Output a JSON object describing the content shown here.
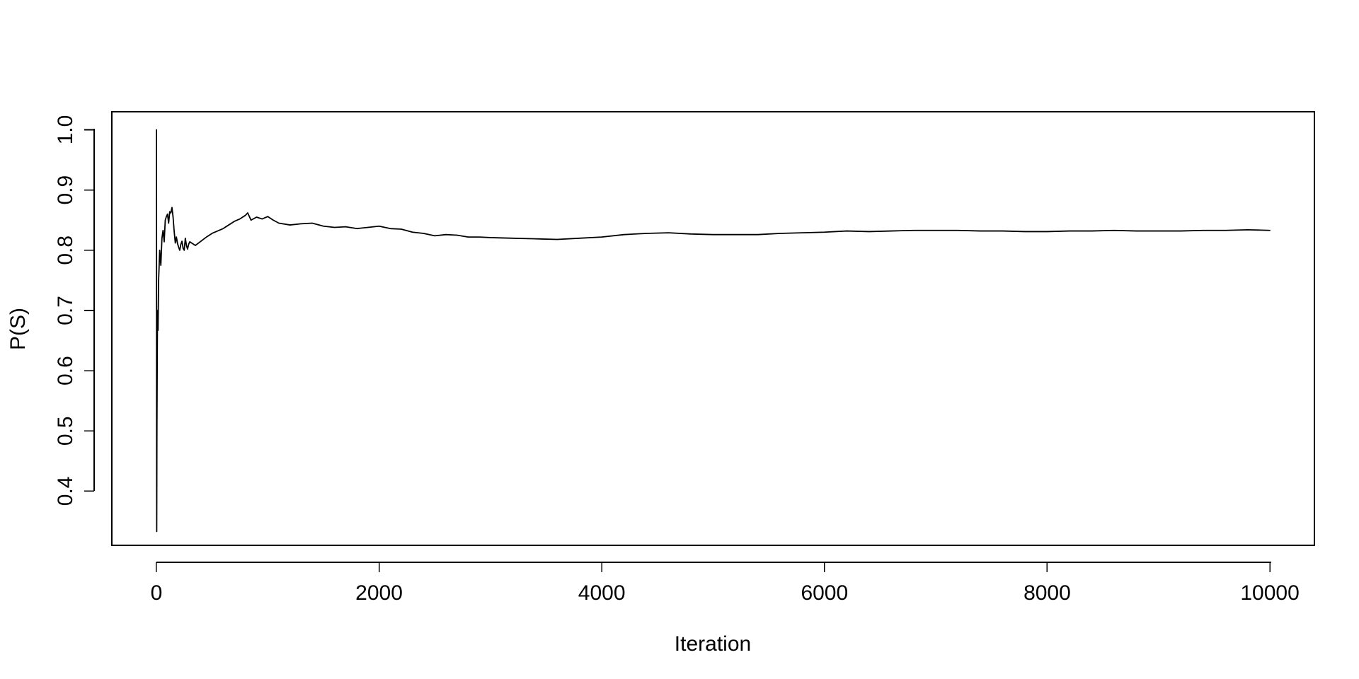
{
  "chart_data": {
    "type": "line",
    "title": "",
    "xlabel": "Iteration",
    "ylabel": "P(S)",
    "xlim": [
      -400,
      10400
    ],
    "ylim": [
      0.31,
      1.03
    ],
    "xticks": [
      0,
      2000,
      4000,
      6000,
      8000,
      10000
    ],
    "xtick_labels": [
      "0",
      "2000",
      "4000",
      "6000",
      "8000",
      "10000"
    ],
    "yticks": [
      0.4,
      0.5,
      0.6,
      0.7,
      0.8,
      0.9,
      1.0
    ],
    "ytick_labels": [
      "0.4",
      "0.5",
      "0.6",
      "0.7",
      "0.8",
      "0.9",
      "1.0"
    ],
    "grid": false,
    "legend": "none",
    "series": [
      {
        "x": [
          1,
          2,
          3,
          5,
          8,
          10,
          15,
          20,
          30,
          40,
          50,
          60,
          70,
          80,
          90,
          100,
          110,
          120,
          130,
          140,
          150,
          160,
          170,
          180,
          190,
          200,
          210,
          220,
          230,
          240,
          250,
          260,
          270,
          280,
          290,
          300,
          350,
          400,
          450,
          500,
          550,
          600,
          650,
          700,
          750,
          800,
          820,
          850,
          900,
          950,
          1000,
          1050,
          1100,
          1200,
          1300,
          1400,
          1500,
          1600,
          1700,
          1800,
          1900,
          2000,
          2100,
          2200,
          2300,
          2400,
          2500,
          2600,
          2700,
          2800,
          2900,
          3000,
          3200,
          3400,
          3600,
          3800,
          4000,
          4200,
          4400,
          4600,
          4800,
          5000,
          5200,
          5400,
          5600,
          5800,
          6000,
          6200,
          6400,
          6600,
          6800,
          7000,
          7200,
          7400,
          7600,
          7800,
          8000,
          8200,
          8400,
          8600,
          8800,
          9000,
          9200,
          9400,
          9600,
          9800,
          10000
        ],
        "y": [
          1.0,
          0.5,
          0.333,
          0.5,
          0.625,
          0.7,
          0.667,
          0.75,
          0.8,
          0.775,
          0.82,
          0.833,
          0.814,
          0.85,
          0.856,
          0.86,
          0.845,
          0.864,
          0.862,
          0.871,
          0.855,
          0.831,
          0.812,
          0.822,
          0.811,
          0.805,
          0.8,
          0.81,
          0.815,
          0.803,
          0.8,
          0.82,
          0.808,
          0.802,
          0.81,
          0.814,
          0.808,
          0.815,
          0.822,
          0.828,
          0.832,
          0.836,
          0.842,
          0.848,
          0.852,
          0.858,
          0.862,
          0.85,
          0.855,
          0.852,
          0.856,
          0.85,
          0.845,
          0.842,
          0.844,
          0.845,
          0.84,
          0.838,
          0.839,
          0.836,
          0.838,
          0.84,
          0.836,
          0.835,
          0.83,
          0.828,
          0.824,
          0.826,
          0.825,
          0.822,
          0.822,
          0.821,
          0.82,
          0.819,
          0.818,
          0.82,
          0.822,
          0.826,
          0.828,
          0.829,
          0.827,
          0.826,
          0.826,
          0.826,
          0.828,
          0.829,
          0.83,
          0.832,
          0.831,
          0.832,
          0.833,
          0.833,
          0.833,
          0.832,
          0.832,
          0.831,
          0.831,
          0.832,
          0.832,
          0.833,
          0.832,
          0.832,
          0.832,
          0.833,
          0.833,
          0.834,
          0.833
        ]
      }
    ]
  }
}
